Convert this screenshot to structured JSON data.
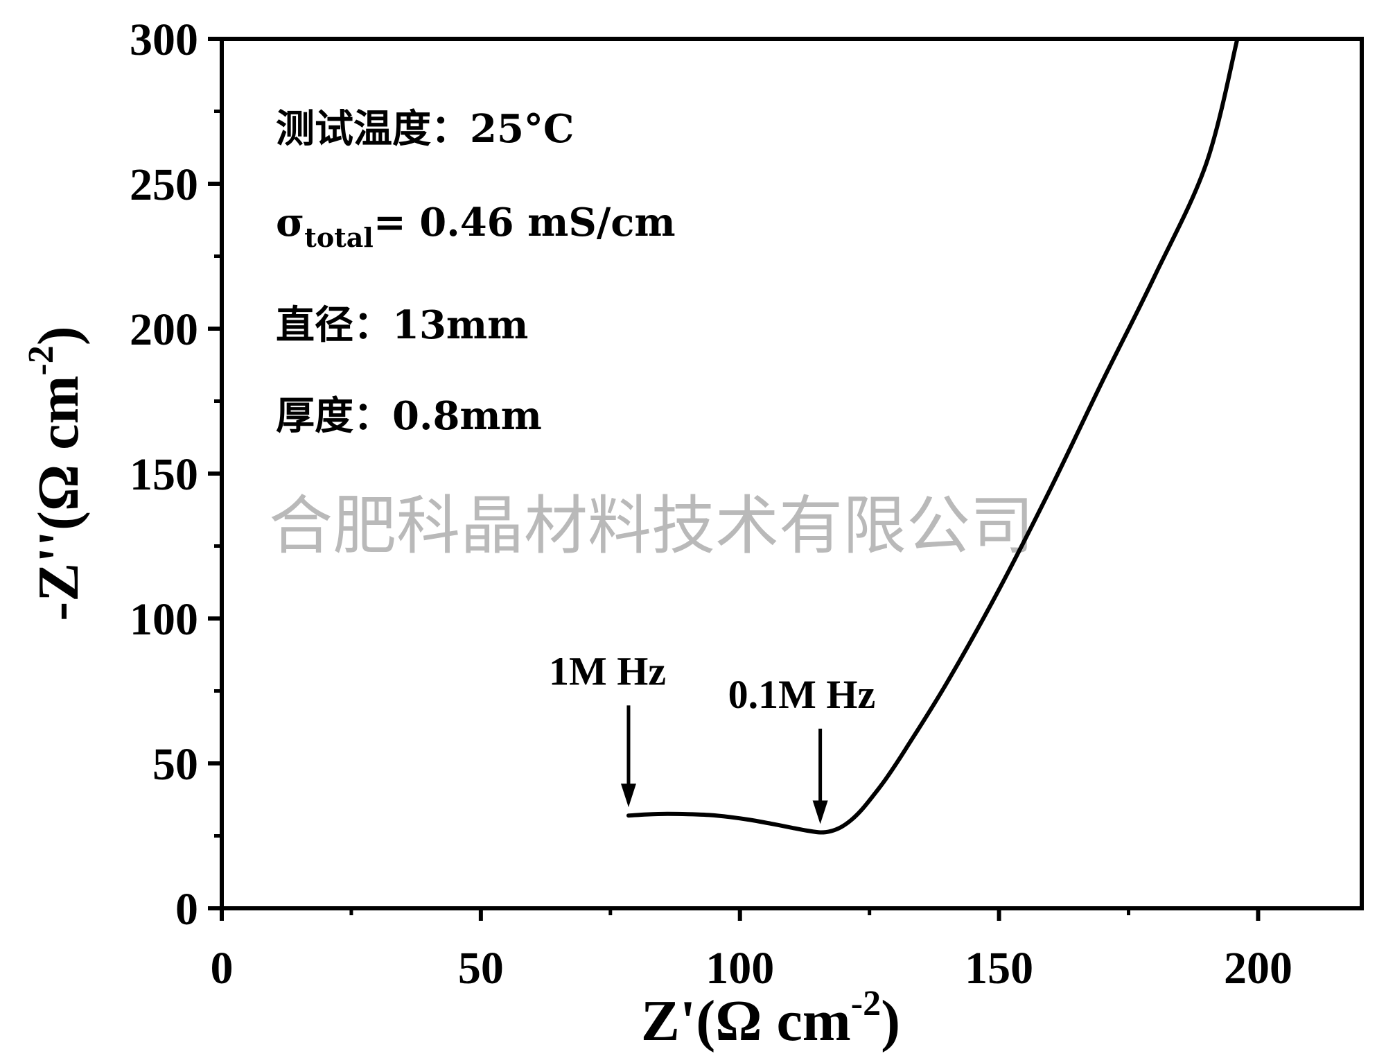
{
  "chart_data": {
    "type": "line",
    "xlabel": {
      "main": "Z'(Ω cm",
      "sup": "-2",
      "close": ")"
    },
    "ylabel": {
      "main": "-Z''(Ω cm",
      "sup": "-2",
      "close": ")"
    },
    "xlim": [
      0,
      220
    ],
    "ylim": [
      0,
      300
    ],
    "x_ticks": [
      0,
      50,
      100,
      150,
      200
    ],
    "y_ticks": [
      0,
      50,
      100,
      150,
      200,
      250,
      300
    ],
    "x_tick_labels": [
      "0",
      "50",
      "100",
      "150",
      "200"
    ],
    "y_tick_labels": [
      "0",
      "50",
      "100",
      "150",
      "200",
      "250",
      "300"
    ],
    "x_minor_ticks": [
      25,
      75,
      125,
      175
    ],
    "y_minor_ticks": [
      25,
      75,
      125,
      175,
      225,
      275
    ],
    "grid": false,
    "series": [
      {
        "color": "#000000",
        "points": [
          [
            78.5,
            32.0
          ],
          [
            82,
            32.4
          ],
          [
            86,
            32.6
          ],
          [
            90,
            32.5
          ],
          [
            94,
            32.2
          ],
          [
            98,
            31.5
          ],
          [
            102,
            30.5
          ],
          [
            106,
            29.2
          ],
          [
            110,
            27.8
          ],
          [
            113,
            26.8
          ],
          [
            115.5,
            26.2
          ],
          [
            117.5,
            26.6
          ],
          [
            119.5,
            28.0
          ],
          [
            121.5,
            30.5
          ],
          [
            123.5,
            34.0
          ],
          [
            126,
            39.5
          ],
          [
            128.5,
            45.5
          ],
          [
            132,
            55.0
          ],
          [
            140,
            78.0
          ],
          [
            150,
            110.0
          ],
          [
            160,
            145.0
          ],
          [
            170,
            182.0
          ],
          [
            180,
            218.0
          ],
          [
            190,
            257.0
          ],
          [
            196,
            300.0
          ]
        ]
      }
    ],
    "annotations": [
      {
        "label": "1M Hz",
        "x": 78.5,
        "y": 32.0,
        "arrow_from_y": 70
      },
      {
        "label": "0.1M Hz",
        "x": 115.5,
        "y": 26.2,
        "arrow_from_y": 62
      }
    ]
  },
  "notes": {
    "line1": "测试温度：25°C",
    "line2_sigma": "σ",
    "line2_sub": "total",
    "line2_rest": "= 0.46 mS/cm",
    "line3": "直径：13mm",
    "line4": "厚度：0.8mm"
  },
  "watermark": "合肥科晶材料技术有限公司"
}
